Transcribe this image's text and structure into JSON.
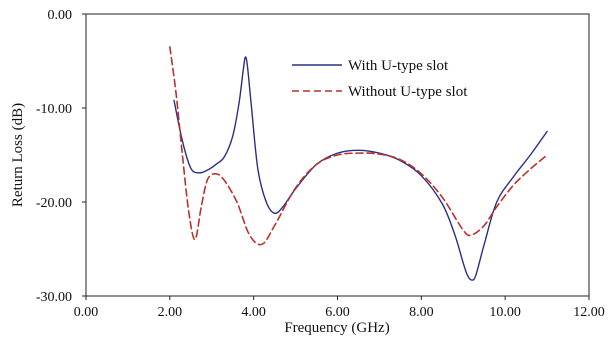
{
  "chart_data": {
    "type": "line",
    "title": "",
    "xlabel": "Frequency (GHz)",
    "ylabel": "Return Loss (dB)",
    "xlim": [
      0,
      12
    ],
    "ylim": [
      -30,
      0
    ],
    "xticks": [
      0,
      2,
      4,
      6,
      8,
      10,
      12
    ],
    "yticks": [
      0,
      -10,
      -20,
      -30
    ],
    "xtick_labels": [
      "0.00",
      "2.00",
      "4.00",
      "6.00",
      "8.00",
      "10.00",
      "12.00"
    ],
    "ytick_labels": [
      "0.00",
      "-10.00",
      "-20.00",
      "-30.00"
    ],
    "grid": false,
    "legend_position": "top-right",
    "series": [
      {
        "name": "With U-type slot",
        "color": "#2b2f86",
        "dash": "solid",
        "x": [
          2.1,
          2.3,
          2.5,
          2.7,
          2.9,
          3.1,
          3.3,
          3.5,
          3.65,
          3.75,
          3.8,
          3.85,
          3.95,
          4.1,
          4.3,
          4.5,
          4.7,
          5.0,
          5.5,
          6.0,
          6.5,
          7.0,
          7.5,
          8.0,
          8.5,
          8.8,
          9.0,
          9.1,
          9.2,
          9.3,
          9.5,
          9.8,
          10.2,
          10.6,
          11.0
        ],
        "y": [
          -9.2,
          -13.5,
          -16.4,
          -16.9,
          -16.6,
          -16.0,
          -15.2,
          -13.0,
          -9.5,
          -6.0,
          -4.6,
          -5.5,
          -10.0,
          -16.5,
          -20.0,
          -21.2,
          -20.5,
          -18.6,
          -16.0,
          -14.8,
          -14.5,
          -14.8,
          -15.6,
          -17.2,
          -20.2,
          -23.5,
          -26.5,
          -27.8,
          -28.3,
          -27.8,
          -24.5,
          -20.0,
          -17.3,
          -15.0,
          -12.5
        ]
      },
      {
        "name": "Without U-type slot",
        "color": "#b8332b",
        "dash": "dashed",
        "x": [
          2.0,
          2.15,
          2.3,
          2.45,
          2.6,
          2.75,
          2.9,
          3.1,
          3.3,
          3.6,
          3.9,
          4.2,
          4.5,
          5.0,
          5.5,
          6.0,
          6.5,
          7.0,
          7.5,
          8.0,
          8.5,
          9.0,
          9.2,
          9.5,
          9.8,
          10.2,
          10.6,
          11.0
        ],
        "y": [
          -3.5,
          -8.5,
          -15.0,
          -21.0,
          -24.0,
          -20.5,
          -17.6,
          -17.0,
          -17.7,
          -20.0,
          -23.5,
          -24.5,
          -22.5,
          -18.5,
          -16.0,
          -15.0,
          -14.8,
          -14.9,
          -15.5,
          -17.0,
          -19.5,
          -23.0,
          -23.5,
          -22.5,
          -20.5,
          -18.2,
          -16.5,
          -15.0
        ]
      }
    ]
  }
}
